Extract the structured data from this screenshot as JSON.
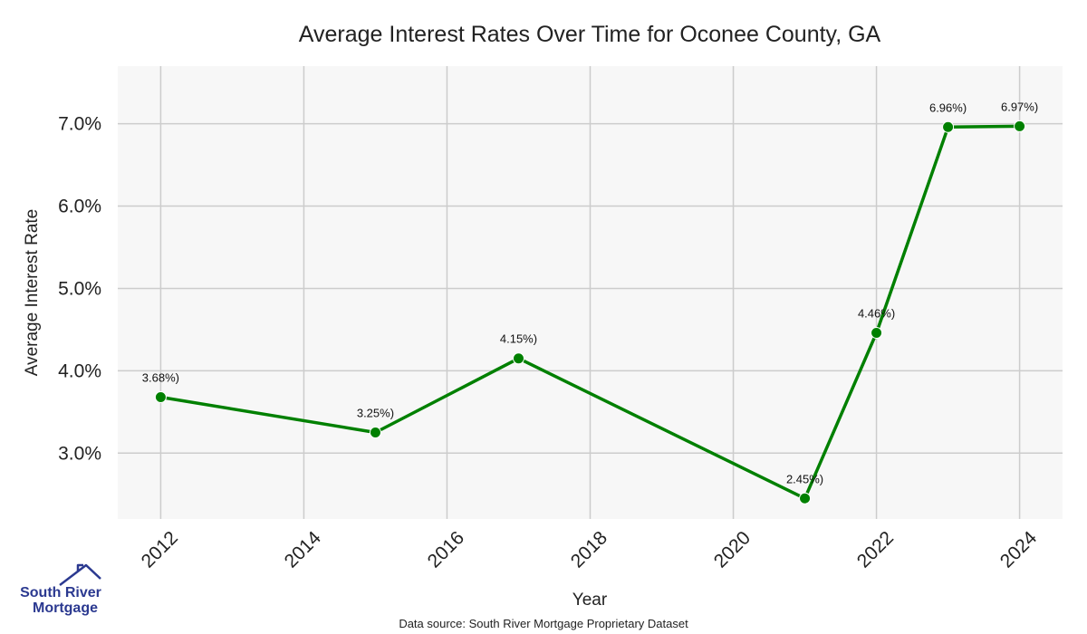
{
  "chart_data": {
    "type": "line",
    "title": "Average Interest Rates Over Time for Oconee County, GA",
    "xlabel": "Year",
    "ylabel": "Average Interest Rate",
    "x": [
      2012,
      2015,
      2017,
      2021,
      2022,
      2023,
      2024
    ],
    "series": [
      {
        "values": [
          3.68,
          3.25,
          4.15,
          2.45,
          4.46,
          6.96,
          6.97
        ],
        "labels": [
          "3.68%)",
          "3.25%)",
          "4.15%)",
          "2.45%)",
          "4.46%)",
          "6.96%)",
          "6.97%)"
        ],
        "color": "#008000"
      }
    ],
    "xlim": [
      2011.4,
      2024.6
    ],
    "ylim": [
      2.2,
      7.7
    ],
    "xticks": [
      2012,
      2014,
      2016,
      2018,
      2020,
      2022,
      2024
    ],
    "yticks": [
      3.0,
      4.0,
      5.0,
      6.0,
      7.0
    ],
    "ytick_labels": [
      "3.0%",
      "4.0%",
      "5.0%",
      "6.0%",
      "7.0%"
    ],
    "grid": true,
    "plot_background": "#f7f7f7",
    "grid_color": "#cccccc"
  },
  "source_note": "Data source: South River Mortgage Proprietary Dataset",
  "logo": {
    "line1": "South River",
    "line2": "Mortgage",
    "color": "#2b3990"
  }
}
